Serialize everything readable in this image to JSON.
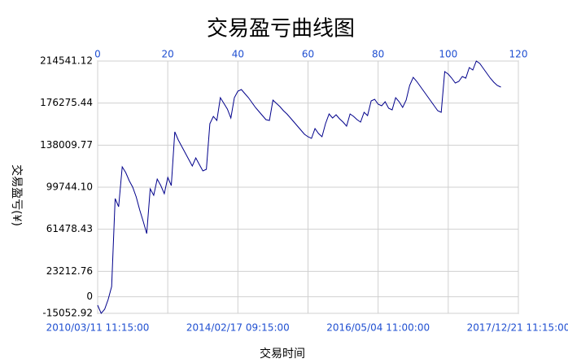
{
  "chart_data": {
    "type": "line",
    "title": "交易盈亏曲线图",
    "y_label": "交易盈亏(¥)",
    "x_label": "交易时间",
    "xlim": [
      0,
      120
    ],
    "xticks": [
      0,
      20,
      40,
      60,
      80,
      100,
      120
    ],
    "x2ticks": [
      {
        "value": 0,
        "label": "2010/03/11 11:15:00"
      },
      {
        "value": 40,
        "label": "2014/02/17 09:15:00"
      },
      {
        "value": 80,
        "label": "2016/05/04 11:00:00"
      },
      {
        "value": 120,
        "label": "2017/12/21 11:15:00"
      }
    ],
    "ylim": [
      -15052.92,
      214541.12
    ],
    "yticks": [
      -15052.92,
      0,
      23212.76,
      61478.43,
      {
        "value": 99744.1,
        "label": "99744.10"
      },
      138009.77,
      176275.44,
      214541.12
    ],
    "grid": true,
    "series": [
      {
        "color": "#00008b",
        "x": [
          0,
          1,
          2,
          3,
          4,
          5,
          6,
          7,
          8,
          9,
          10,
          11,
          12,
          13,
          14,
          15,
          16,
          17,
          18,
          19,
          20,
          21,
          22,
          23,
          24,
          25,
          26,
          27,
          28,
          29,
          30,
          31,
          32,
          33,
          34,
          35,
          36,
          37,
          38,
          39,
          40,
          41,
          42,
          43,
          44,
          45,
          46,
          47,
          48,
          49,
          50,
          51,
          52,
          53,
          54,
          55,
          56,
          57,
          58,
          59,
          60,
          61,
          62,
          63,
          64,
          65,
          66,
          67,
          68,
          69,
          70,
          71,
          72,
          73,
          74,
          75,
          76,
          77,
          78,
          79,
          80,
          81,
          82,
          83,
          84,
          85,
          86,
          87,
          88,
          89,
          90,
          91,
          92,
          93,
          94,
          95,
          96,
          97,
          98,
          99,
          100,
          101,
          102,
          103,
          104,
          105,
          106,
          107,
          108,
          109,
          110,
          111,
          112,
          113,
          114,
          115
        ],
        "values": [
          -7647,
          -15053,
          -11350,
          -2463,
          9387,
          89372,
          81966,
          118255,
          113071,
          105665,
          99740,
          90853,
          79003,
          68635,
          57526,
          98259,
          92334,
          107146,
          101221,
          93815,
          108627,
          101221,
          150101,
          142695,
          136770,
          130845,
          124920,
          118996,
          126402,
          120477,
          114552,
          116033,
          157507,
          164172,
          160469,
          181206,
          176022,
          170838,
          162691,
          181206,
          187131,
          188612,
          184909,
          181206,
          176763,
          172319,
          168616,
          164913,
          161210,
          160469,
          178984,
          176022,
          173059,
          169356,
          166394,
          162691,
          158988,
          155285,
          151582,
          147879,
          145657,
          144176,
          153063,
          148620,
          145657,
          157507,
          166394,
          162691,
          165653,
          161950,
          158988,
          155285,
          166394,
          164172,
          161210,
          158988,
          167875,
          164913,
          178244,
          179725,
          175281,
          173800,
          177503,
          171578,
          170097,
          181206,
          177503,
          172319,
          178984,
          192315,
          199721,
          196018,
          191575,
          187131,
          182687,
          178244,
          173800,
          169356,
          167875,
          204905,
          202683,
          198980,
          194537,
          196018,
          200461,
          198980,
          208608,
          206386,
          214533,
          212311,
          207867,
          203424,
          198980,
          195277,
          192315,
          190834
        ]
      }
    ]
  }
}
